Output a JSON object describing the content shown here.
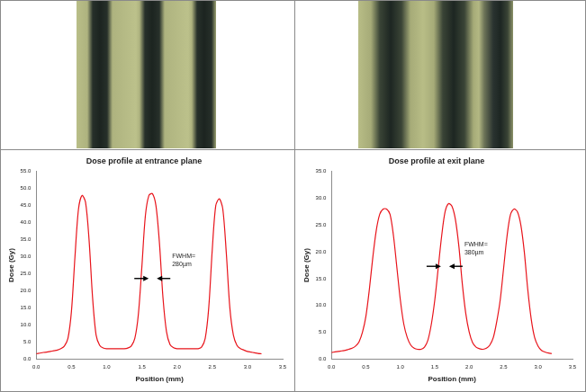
{
  "chart_data": [
    {
      "type": "line",
      "title": "Dose profile at entrance plane",
      "x_label": "Position (mm)",
      "y_label": "Dose (Gy)",
      "color": "#e8141b",
      "grid": false,
      "x": [
        0,
        0.05,
        0.1,
        0.15,
        0.2,
        0.25,
        0.3,
        0.35,
        0.4,
        0.45,
        0.5,
        0.55,
        0.6,
        0.65,
        0.7,
        0.75,
        0.8,
        0.85,
        0.9,
        0.95,
        1.0,
        1.05,
        1.1,
        1.15,
        1.2,
        1.25,
        1.3,
        1.35,
        1.4,
        1.45,
        1.5,
        1.55,
        1.6,
        1.65,
        1.7,
        1.75,
        1.8,
        1.85,
        1.9,
        1.95,
        2.0,
        2.05,
        2.1,
        2.15,
        2.2,
        2.25,
        2.3,
        2.35,
        2.4,
        2.45,
        2.5,
        2.55,
        2.6,
        2.65,
        2.7,
        2.75,
        2.8,
        2.85,
        2.9,
        2.95,
        3.0,
        3.05,
        3.1,
        3.15,
        3.2
      ],
      "values": [
        1.5,
        1.7,
        1.9,
        2.0,
        2.2,
        2.4,
        2.6,
        3.0,
        3.8,
        6,
        14,
        30,
        44,
        48,
        46,
        35,
        18,
        7,
        4,
        3.2,
        3.0,
        3.0,
        3.0,
        3.0,
        3.0,
        3.0,
        3.2,
        3.8,
        6,
        13,
        27,
        42,
        48,
        48.5,
        45,
        34,
        18,
        8,
        4.2,
        3.3,
        3.0,
        3.0,
        3.0,
        3.0,
        3.0,
        3.0,
        3.0,
        3.5,
        6,
        15,
        32,
        45,
        47,
        44,
        31,
        15,
        7,
        4,
        3.0,
        2.6,
        2.2,
        2.0,
        1.8,
        1.6,
        1.5
      ],
      "xlim": [
        0,
        3.5
      ],
      "xticks": [
        {
          "value": 0,
          "label": "0.0"
        },
        {
          "value": 0.5,
          "label": "0.5"
        },
        {
          "value": 1,
          "label": "1.0"
        },
        {
          "value": 1.5,
          "label": "1.5"
        },
        {
          "value": 2,
          "label": "2.0"
        },
        {
          "value": 2.5,
          "label": "2.5"
        },
        {
          "value": 3,
          "label": "3.0"
        },
        {
          "value": 3.5,
          "label": "3.5"
        }
      ],
      "ylim": [
        0,
        55
      ],
      "yticks": [
        {
          "value": 0,
          "label": "0.0"
        },
        {
          "value": 5,
          "label": "5.0"
        },
        {
          "value": 10,
          "label": "10.0"
        },
        {
          "value": 15,
          "label": "15.0"
        },
        {
          "value": 20,
          "label": "20.0"
        },
        {
          "value": 25,
          "label": "25.0"
        },
        {
          "value": 30,
          "label": "30.0"
        },
        {
          "value": 35,
          "label": "35.0"
        },
        {
          "value": 40,
          "label": "40.0"
        },
        {
          "value": 45,
          "label": "45.0"
        },
        {
          "value": 50,
          "label": "50.0"
        },
        {
          "value": 55,
          "label": "55.0"
        }
      ],
      "annotations": [
        {
          "text": [
            "FWHM=",
            "280µm"
          ],
          "x": 1.93,
          "y": 31
        }
      ]
    },
    {
      "type": "line",
      "title": "Dose profile at exit plane",
      "x_label": "Position (mm)",
      "y_label": "Dose (Gy)",
      "color": "#e8141b",
      "grid": false,
      "x": [
        0,
        0.05,
        0.1,
        0.15,
        0.2,
        0.25,
        0.3,
        0.35,
        0.4,
        0.45,
        0.5,
        0.55,
        0.6,
        0.65,
        0.7,
        0.75,
        0.8,
        0.85,
        0.9,
        0.95,
        1.0,
        1.05,
        1.1,
        1.15,
        1.2,
        1.25,
        1.3,
        1.35,
        1.4,
        1.45,
        1.5,
        1.55,
        1.6,
        1.65,
        1.7,
        1.75,
        1.8,
        1.85,
        1.9,
        1.95,
        2.0,
        2.05,
        2.1,
        2.15,
        2.2,
        2.25,
        2.3,
        2.35,
        2.4,
        2.45,
        2.5,
        2.55,
        2.6,
        2.65,
        2.7,
        2.75,
        2.8,
        2.85,
        2.9,
        2.95,
        3.0,
        3.05,
        3.1,
        3.15,
        3.2
      ],
      "values": [
        1.2,
        1.3,
        1.4,
        1.5,
        1.6,
        1.8,
        2.0,
        2.4,
        3.2,
        5,
        8,
        13,
        19,
        24,
        27,
        28,
        28,
        27,
        23,
        17,
        11,
        6.5,
        4,
        2.6,
        2.0,
        1.8,
        1.8,
        2.2,
        3.5,
        6.5,
        11,
        17,
        23,
        27.5,
        29,
        28.5,
        26,
        21,
        14,
        8.5,
        5,
        3,
        2.2,
        1.9,
        1.8,
        2.0,
        2.6,
        4,
        7,
        11,
        17,
        23,
        27,
        28,
        27.5,
        25,
        20,
        13,
        7.5,
        4,
        2.4,
        1.6,
        1.3,
        1.1,
        1.0
      ],
      "xlim": [
        0,
        3.5
      ],
      "xticks": [
        {
          "value": 0,
          "label": "0.0"
        },
        {
          "value": 0.5,
          "label": "0.5"
        },
        {
          "value": 1,
          "label": "1.0"
        },
        {
          "value": 1.5,
          "label": "1.5"
        },
        {
          "value": 2,
          "label": "2.0"
        },
        {
          "value": 2.5,
          "label": "2.5"
        },
        {
          "value": 3,
          "label": "3.0"
        },
        {
          "value": 3.5,
          "label": "3.5"
        }
      ],
      "ylim": [
        0,
        35
      ],
      "yticks": [
        {
          "value": 0,
          "label": "0.0"
        },
        {
          "value": 5,
          "label": "5.0"
        },
        {
          "value": 10,
          "label": "10.0"
        },
        {
          "value": 15,
          "label": "15.0"
        },
        {
          "value": 20,
          "label": "20.0"
        },
        {
          "value": 25,
          "label": "25.0"
        },
        {
          "value": 30,
          "label": "30.0"
        },
        {
          "value": 35,
          "label": "35.0"
        }
      ],
      "annotations": [
        {
          "text": [
            "FWHM=",
            "380µm"
          ],
          "x": 1.93,
          "y": 22
        }
      ]
    }
  ]
}
